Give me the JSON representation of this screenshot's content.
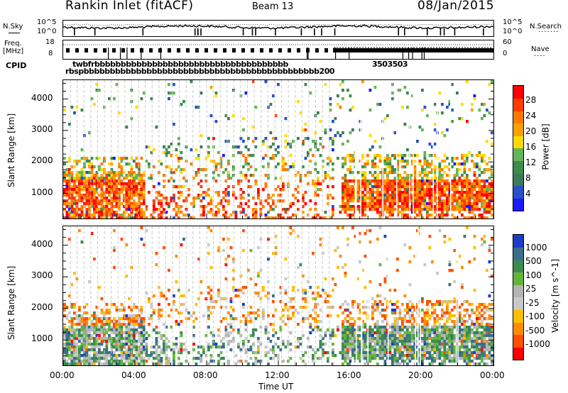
{
  "header": {
    "title": "Rankin Inlet (fitACF)",
    "beam": "Beam 13",
    "date": "08/Jan/2015"
  },
  "top_strip": {
    "left_label": "N.Sky",
    "right_label": "N.Search",
    "y_top": "10^5",
    "y_bottom": "10^0",
    "right_top": "10^5",
    "right_bottom": "10^0"
  },
  "freq_strip": {
    "left_label_1": "Freq.",
    "left_label_2": "[MHz]",
    "right_label": "Nave",
    "y_top": "18",
    "y_bottom": "8",
    "right_top": "60",
    "right_bottom": "0"
  },
  "cpid": {
    "label": "CPID",
    "row1": "twbfrbbbbbbbbbbbbbbbbbbbbbbbbbbbbbbbbbbbbb",
    "row2": "rbspbbbbbbbbbbbbbbbbbbbbbbbbbbbbbbbbbbbbbbbbbbbbb200",
    "row_right": "3503503"
  },
  "x_axis": {
    "label": "Time UT",
    "ticks": [
      "00:00",
      "04:00",
      "08:00",
      "12:00",
      "16:00",
      "20:00",
      "00:00"
    ]
  },
  "colors": {
    "power_scale": [
      "#1a1aff",
      "#2850c8",
      "#3c7a5a",
      "#3c8c50",
      "#64b45a",
      "#ffdc00",
      "#ffa000",
      "#ff7800",
      "#ff3c00",
      "#ff0000"
    ],
    "velocity_scale": [
      "#ff0000",
      "#ff5000",
      "#ff8c00",
      "#ffbe00",
      "#c8c8c8",
      "#b4b4b4",
      "#64b43c",
      "#3c8c50",
      "#3c6e8c",
      "#1a3cc8"
    ]
  },
  "chart_data": [
    {
      "type": "heatmap",
      "name": "power",
      "ylabel": "Slant Range [km]",
      "xlim": [
        0,
        24
      ],
      "ylim": [
        200,
        4600
      ],
      "yticks": [
        "4000",
        "3000",
        "2000",
        "1000"
      ],
      "colorbar_label": "Power [dB]",
      "colorbar_ticks": [
        "28",
        "24",
        "20",
        "16",
        "12",
        "8",
        "4"
      ],
      "colorbar_range": [
        0,
        32
      ]
    },
    {
      "type": "heatmap",
      "name": "velocity",
      "ylabel": "Slant Range [km]",
      "xlim": [
        0,
        24
      ],
      "ylim": [
        200,
        4600
      ],
      "yticks": [
        "4000",
        "3000",
        "2000",
        "1000"
      ],
      "colorbar_label": "Velocity [m s^-1]",
      "colorbar_ticks": [
        "1000",
        "500",
        "100",
        "25",
        "-25",
        "-100",
        "-500",
        "-1000"
      ]
    }
  ]
}
